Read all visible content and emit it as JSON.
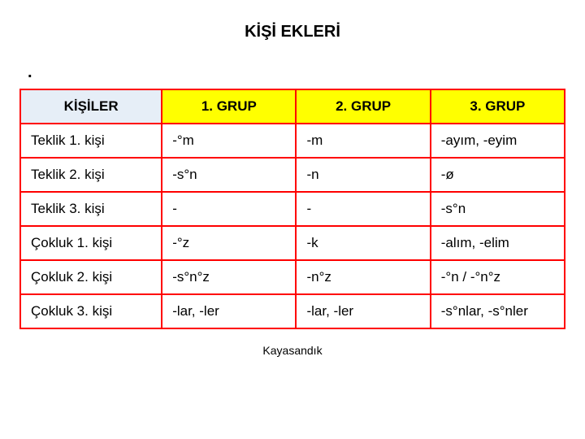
{
  "title": "KİŞİ EKLERİ",
  "dot": ".",
  "footer": "Kayasandık",
  "table": {
    "border_color": "#ff0000",
    "header_colors": [
      "#e6eef7",
      "#ffff00",
      "#ffff00",
      "#ffff00"
    ],
    "col_widths": [
      "26%",
      "24.67%",
      "24.67%",
      "24.66%"
    ],
    "columns": [
      "KİŞİLER",
      "1. GRUP",
      "2. GRUP",
      "3. GRUP"
    ],
    "rows": [
      {
        "label": "Teklik 1. kişi",
        "cells": [
          "-°m",
          "-m",
          "-ayım, -eyim"
        ]
      },
      {
        "label": "Teklik 2. kişi",
        "cells": [
          "-s°n",
          "-n",
          "-ø"
        ]
      },
      {
        "label": "Teklik 3. kişi",
        "cells": [
          "-",
          "-",
          "-s°n"
        ]
      },
      {
        "label": "Çokluk 1. kişi",
        "cells": [
          "-°z",
          "-k",
          "-alım, -elim"
        ]
      },
      {
        "label": "Çokluk 2. kişi",
        "cells": [
          "-s°n°z",
          "-n°z",
          "-°n / -°n°z"
        ]
      },
      {
        "label": "Çokluk 3. kişi",
        "cells": [
          "-lar, -ler",
          "-lar, -ler",
          "-s°nlar, -s°nler"
        ]
      }
    ]
  },
  "styles": {
    "title_fontsize": 20,
    "cell_fontsize": 17,
    "footer_fontsize": 14,
    "background": "#ffffff",
    "text_color": "#000000"
  }
}
